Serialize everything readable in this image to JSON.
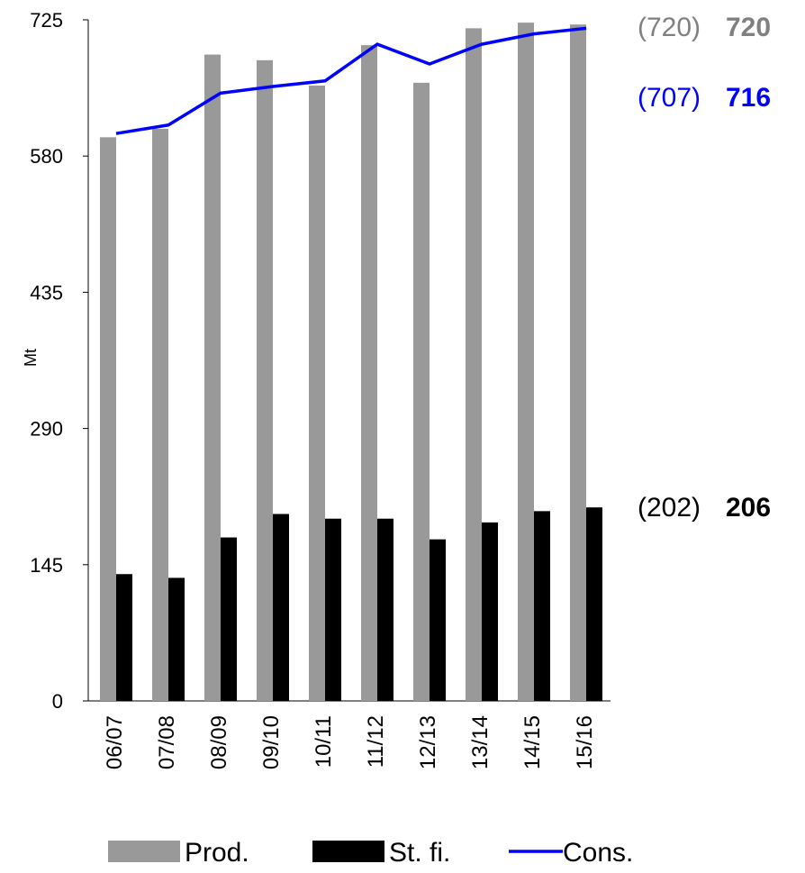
{
  "chart_data": {
    "type": "bar_line",
    "y_label": "Mt",
    "categories": [
      "06/07",
      "07/08",
      "08/09",
      "09/10",
      "10/11",
      "11/12",
      "12/13",
      "13/14",
      "14/15",
      "15/16"
    ],
    "series": [
      {
        "name": "Prod.",
        "color": "#999999",
        "kind": "bar",
        "values": [
          600,
          609,
          688,
          682,
          655,
          698,
          658,
          716,
          722,
          720
        ]
      },
      {
        "name": "St. fi.",
        "color": "#000000",
        "kind": "bar",
        "values": [
          135,
          131,
          174,
          199,
          194,
          194,
          172,
          190,
          202,
          206
        ]
      },
      {
        "name": "Cons.",
        "color": "#0000ff",
        "kind": "line",
        "values": [
          604,
          613,
          647,
          654,
          660,
          699,
          678,
          699,
          710,
          716
        ]
      }
    ],
    "annotations": [
      {
        "previous": "(720)",
        "current": "720",
        "color": "#808080"
      },
      {
        "previous": "(707)",
        "current": "716",
        "color": "#0000ff"
      },
      {
        "previous": "(202)",
        "current": "206",
        "color": "#000000"
      }
    ],
    "ylim": [
      0,
      725
    ],
    "yticks": [
      0,
      145,
      290,
      435,
      580,
      725
    ]
  }
}
